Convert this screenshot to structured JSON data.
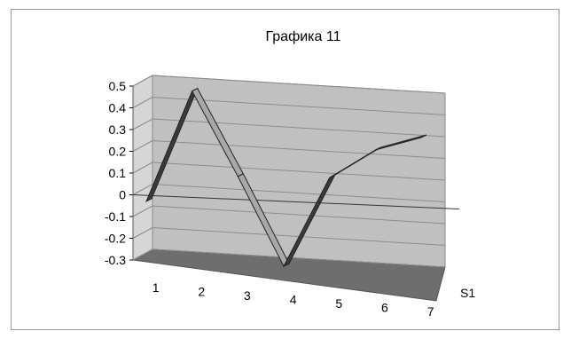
{
  "chart_data": {
    "type": "line",
    "title": "Графика 11",
    "x": [
      1,
      2,
      3,
      4,
      5,
      6,
      7
    ],
    "series": [
      {
        "name": "S1",
        "values": [
          -0.04,
          0.48,
          0.1,
          -0.3,
          0.12,
          0.26,
          0.33
        ]
      }
    ],
    "ylim": [
      -0.3,
      0.5
    ],
    "yticks": [
      "-0.3",
      "-0.2",
      "-0.1",
      "0",
      "0.1",
      "0.2",
      "0.3",
      "0.4",
      "0.5"
    ],
    "xticks": [
      "1",
      "2",
      "3",
      "4",
      "5",
      "6",
      "7"
    ],
    "grid": true,
    "style": "3d-ribbon",
    "colors": {
      "back_wall": "#c0c0c0",
      "floor": "#6e6e6e",
      "ribbon_face": "#a8a8a8",
      "ribbon_dark": "#3a3a3a",
      "gridline": "#8c8c8c"
    }
  }
}
